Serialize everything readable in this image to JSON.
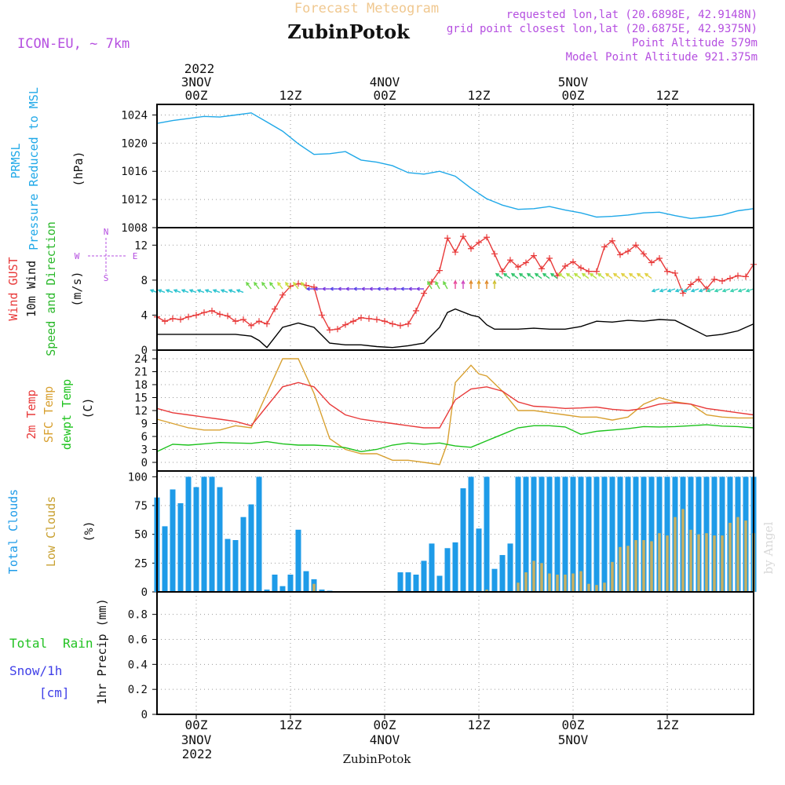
{
  "header": {
    "subtitle": "Forecast Meteogram",
    "location": "ZubinPotok",
    "model": "ICON-EU, ~ 7km",
    "requested": "requested lon,lat (20.6898E, 42.9148N)",
    "closest": "grid point closest lon,lat (20.6875E, 42.9375N)",
    "point_altitude": "Point Altitude 579m",
    "model_altitude": "Model Point Altitude 921.375m",
    "footer_location": "ZubinPotok",
    "watermark": "by Angel"
  },
  "time_axis": {
    "year": "2022",
    "ticks": [
      {
        "hour": 0,
        "label": "00Z",
        "date": "3NOV"
      },
      {
        "hour": 12,
        "label": "12Z",
        "date": ""
      },
      {
        "hour": 24,
        "label": "00Z",
        "date": "4NOV"
      },
      {
        "hour": 36,
        "label": "12Z",
        "date": ""
      },
      {
        "hour": 48,
        "label": "00Z",
        "date": "5NOV"
      },
      {
        "hour": 60,
        "label": "12Z",
        "date": ""
      }
    ],
    "start_hour": -5,
    "end_hour": 71
  },
  "colors": {
    "pressure": "#1fa8e8",
    "gust": "#e83a3a",
    "wind": "#000000",
    "dir_label": "#2ab82a",
    "temp2m": "#e83a3a",
    "sfc": "#d8a030",
    "dewpt": "#1cc21c",
    "total_clouds": "#1e9be8",
    "low_clouds": "#c8b060",
    "rain": "#22c222",
    "snow": "#3f3fe8",
    "purple": "#b54fe0"
  },
  "chart_data": [
    {
      "type": "line",
      "panel": "pressure",
      "labels": [
        "PRMSL",
        "Pressure Reduced to MSL"
      ],
      "ylabel": "(hPa)",
      "ylim": [
        1008,
        1025.5
      ],
      "yticks": [
        1008,
        1012,
        1016,
        1020,
        1024
      ],
      "series": [
        {
          "name": "PRMSL",
          "x": [
            -5,
            -3,
            -1,
            1,
            3,
            5,
            7,
            9,
            11,
            13,
            15,
            17,
            19,
            21,
            23,
            25,
            27,
            29,
            31,
            33,
            35,
            37,
            39,
            41,
            43,
            45,
            47,
            49,
            51,
            53,
            55,
            57,
            59,
            61,
            63,
            65,
            67,
            69,
            71
          ],
          "values": [
            1022.8,
            1023.2,
            1023.5,
            1023.8,
            1023.7,
            1024.0,
            1024.3,
            1023.0,
            1021.7,
            1019.9,
            1018.4,
            1018.5,
            1018.8,
            1017.6,
            1017.3,
            1016.8,
            1015.8,
            1015.6,
            1016.0,
            1015.3,
            1013.6,
            1012.1,
            1011.2,
            1010.6,
            1010.7,
            1011.0,
            1010.5,
            1010.1,
            1009.5,
            1009.6,
            1009.8,
            1010.1,
            1010.2,
            1009.7,
            1009.3,
            1009.5,
            1009.8,
            1010.4,
            1010.7
          ]
        }
      ]
    },
    {
      "type": "line",
      "panel": "wind",
      "labels": [
        "Wind GUST",
        "10m Wind",
        "Speed and Direction"
      ],
      "ylabel": "(m/s)",
      "compass": [
        "N",
        "W",
        "E",
        "S"
      ],
      "ylim": [
        0,
        14
      ],
      "yticks": [
        0,
        4,
        8,
        12
      ],
      "series": [
        {
          "name": "Wind GUST",
          "x": [
            -5,
            -4,
            -3,
            -2,
            -1,
            0,
            1,
            2,
            3,
            4,
            5,
            6,
            7,
            8,
            9,
            10,
            11,
            12,
            13,
            14,
            15,
            16,
            17,
            18,
            19,
            20,
            21,
            22,
            23,
            24,
            25,
            26,
            27,
            28,
            29,
            30,
            31,
            32,
            33,
            34,
            35,
            36,
            37,
            38,
            39,
            40,
            41,
            42,
            43,
            44,
            45,
            46,
            47,
            48,
            49,
            50,
            51,
            52,
            53,
            54,
            55,
            56,
            57,
            58,
            59,
            60,
            61,
            62,
            63,
            64,
            65,
            66,
            67,
            68,
            69,
            70,
            71
          ],
          "values": [
            3.8,
            3.3,
            3.6,
            3.5,
            3.8,
            4.0,
            4.3,
            4.5,
            4.1,
            3.9,
            3.3,
            3.5,
            2.8,
            3.3,
            3.0,
            4.7,
            6.3,
            7.3,
            7.6,
            7.4,
            7.2,
            4.0,
            2.3,
            2.4,
            2.9,
            3.3,
            3.7,
            3.6,
            3.5,
            3.3,
            3.0,
            2.8,
            3.0,
            4.5,
            6.5,
            7.8,
            9.1,
            12.8,
            11.2,
            13.0,
            11.6,
            12.3,
            12.9,
            11.0,
            9.0,
            10.3,
            9.5,
            10.0,
            10.8,
            9.3,
            10.5,
            8.5,
            9.6,
            10.1,
            9.4,
            9.0,
            9.0,
            11.8,
            12.5,
            10.9,
            11.3,
            12.0,
            11.0,
            10.0,
            10.5,
            9.0,
            8.8,
            6.5,
            7.5,
            8.1,
            7.0,
            8.1,
            7.9,
            8.2,
            8.5,
            8.4,
            9.8
          ]
        },
        {
          "name": "10m Wind",
          "x": [
            -5,
            -3,
            -1,
            1,
            3,
            5,
            7,
            8,
            9,
            11,
            13,
            15,
            17,
            19,
            21,
            23,
            25,
            27,
            29,
            31,
            32,
            33,
            35,
            36,
            37,
            38,
            39,
            41,
            43,
            45,
            47,
            49,
            51,
            53,
            55,
            57,
            59,
            61,
            63,
            65,
            67,
            69,
            71
          ],
          "values": [
            1.8,
            1.8,
            1.8,
            1.8,
            1.8,
            1.8,
            1.6,
            1.1,
            0.3,
            2.6,
            3.1,
            2.6,
            0.8,
            0.6,
            0.6,
            0.4,
            0.3,
            0.5,
            0.8,
            2.6,
            4.3,
            4.7,
            4.0,
            3.8,
            2.9,
            2.4,
            2.4,
            2.4,
            2.5,
            2.4,
            2.4,
            2.7,
            3.3,
            3.2,
            3.4,
            3.3,
            3.5,
            3.4,
            2.5,
            1.6,
            1.8,
            2.2,
            3.0
          ]
        }
      ]
    },
    {
      "type": "line",
      "panel": "temperature",
      "labels": [
        "2m Temp",
        "SFC Temp",
        "dewpt Temp"
      ],
      "ylabel": "(C)",
      "ylim": [
        -2,
        26
      ],
      "yticks": [
        0,
        3,
        6,
        9,
        12,
        15,
        18,
        21,
        24
      ],
      "series": [
        {
          "name": "2m Temp",
          "x": [
            -5,
            -3,
            -1,
            1,
            3,
            5,
            7,
            9,
            11,
            13,
            15,
            17,
            19,
            21,
            23,
            25,
            27,
            29,
            31,
            33,
            35,
            37,
            39,
            41,
            43,
            45,
            47,
            49,
            51,
            53,
            55,
            57,
            59,
            61,
            63,
            65,
            67,
            69,
            71
          ],
          "values": [
            12.5,
            11.5,
            11.0,
            10.5,
            10.0,
            9.5,
            8.5,
            13.0,
            17.5,
            18.5,
            17.5,
            13.5,
            11.0,
            10.0,
            9.5,
            9.0,
            8.5,
            8.0,
            8.0,
            14.5,
            17.0,
            17.5,
            16.5,
            14.0,
            13.0,
            12.8,
            12.5,
            12.6,
            12.8,
            12.3,
            12.0,
            12.5,
            13.5,
            13.8,
            13.5,
            12.5,
            12.0,
            11.5,
            11.0
          ]
        },
        {
          "name": "SFC Temp",
          "x": [
            -5,
            -3,
            -1,
            1,
            3,
            5,
            7,
            9,
            11,
            13,
            15,
            17,
            19,
            21,
            23,
            25,
            27,
            29,
            31,
            32,
            33,
            35,
            36,
            37,
            39,
            41,
            43,
            45,
            47,
            49,
            51,
            53,
            55,
            57,
            59,
            61,
            63,
            65,
            67,
            69,
            71
          ],
          "values": [
            10.0,
            9.0,
            8.0,
            7.5,
            7.5,
            8.5,
            8.0,
            16.0,
            24.0,
            24.0,
            16.0,
            5.5,
            3.0,
            2.0,
            2.0,
            0.5,
            0.5,
            0.0,
            -0.5,
            4.5,
            18.5,
            22.5,
            20.5,
            20.0,
            16.5,
            12.0,
            12.0,
            11.5,
            11.0,
            10.5,
            10.5,
            9.8,
            10.5,
            13.5,
            15.0,
            14.0,
            13.5,
            11.0,
            10.5,
            10.3,
            10.3
          ]
        },
        {
          "name": "dewpt Temp",
          "x": [
            -5,
            -3,
            -1,
            1,
            3,
            5,
            7,
            9,
            11,
            13,
            15,
            17,
            19,
            21,
            23,
            25,
            27,
            29,
            31,
            33,
            35,
            37,
            39,
            41,
            43,
            45,
            47,
            49,
            51,
            53,
            55,
            57,
            59,
            61,
            63,
            65,
            67,
            69,
            71
          ],
          "values": [
            2.5,
            4.2,
            4.0,
            4.3,
            4.6,
            4.5,
            4.4,
            4.8,
            4.3,
            4.0,
            4.0,
            3.8,
            3.4,
            2.5,
            3.0,
            4.0,
            4.5,
            4.2,
            4.5,
            3.8,
            3.5,
            5.0,
            6.5,
            8.0,
            8.5,
            8.5,
            8.2,
            6.5,
            7.2,
            7.5,
            7.8,
            8.3,
            8.2,
            8.3,
            8.5,
            8.7,
            8.4,
            8.3,
            8.0
          ]
        }
      ]
    },
    {
      "type": "bar",
      "panel": "clouds",
      "labels": [
        "Total Clouds",
        "Low Clouds"
      ],
      "ylabel": "(%)",
      "ylim": [
        0,
        105
      ],
      "yticks": [
        0,
        25,
        50,
        75,
        100
      ],
      "x": [
        -5,
        -4,
        -3,
        -2,
        -1,
        0,
        1,
        2,
        3,
        4,
        5,
        6,
        7,
        8,
        9,
        10,
        11,
        12,
        13,
        14,
        15,
        16,
        17,
        18,
        19,
        20,
        21,
        22,
        23,
        24,
        25,
        26,
        27,
        28,
        29,
        30,
        31,
        32,
        33,
        34,
        35,
        36,
        37,
        38,
        39,
        40,
        41,
        42,
        43,
        44,
        45,
        46,
        47,
        48,
        49,
        50,
        51,
        52,
        53,
        54,
        55,
        56,
        57,
        58,
        59,
        60,
        61,
        62,
        63,
        64,
        65,
        66,
        67,
        68,
        69,
        70,
        71
      ],
      "series": [
        {
          "name": "Total Clouds",
          "values": [
            82,
            57,
            89,
            77,
            100,
            91,
            100,
            100,
            91,
            46,
            45,
            65,
            76,
            100,
            2,
            15,
            5,
            15,
            54,
            18,
            11,
            2,
            1,
            0,
            0,
            0,
            0,
            0,
            0,
            0,
            0,
            17,
            17,
            15,
            27,
            42,
            14,
            38,
            43,
            90,
            100,
            55,
            100,
            20,
            32,
            42,
            100,
            100,
            100,
            100,
            100,
            100,
            100,
            100,
            100,
            100,
            100,
            100,
            100,
            100,
            100,
            100,
            100,
            100,
            100,
            100,
            100,
            100,
            100,
            100,
            100,
            100,
            100,
            100,
            100,
            100,
            100
          ]
        },
        {
          "name": "Low Clouds",
          "values": [
            0,
            0,
            0,
            0,
            0,
            0,
            0,
            0,
            0,
            0,
            0,
            0,
            0,
            0,
            0,
            0,
            0,
            0,
            0,
            0,
            7,
            0,
            0,
            0,
            0,
            0,
            0,
            0,
            0,
            0,
            0,
            0,
            0,
            0,
            0,
            0,
            0,
            0,
            0,
            0,
            0,
            0,
            2,
            0,
            0,
            0,
            8,
            17,
            27,
            25,
            16,
            15,
            15,
            16,
            18,
            7,
            6,
            8,
            26,
            39,
            40,
            45,
            45,
            44,
            51,
            49,
            65,
            72,
            54,
            50,
            51,
            49,
            49,
            60,
            65,
            62,
            51
          ]
        }
      ]
    },
    {
      "type": "bar",
      "panel": "precip",
      "labels": [
        "Total",
        "Rain",
        "Snow/1h",
        "[cm]"
      ],
      "ylabel": "1hr Precip (mm)",
      "ylim": [
        0,
        0.98
      ],
      "yticks": [
        0,
        0.2,
        0.4,
        0.6,
        0.8
      ],
      "ytick_labels": [
        "0",
        "0.2",
        "0.4",
        "0.6",
        "0.8"
      ],
      "x": [
        -5,
        -4,
        -3,
        -2,
        -1,
        0,
        1,
        2,
        3,
        4,
        5,
        6,
        7,
        8,
        9,
        10,
        11,
        12,
        13,
        14,
        15,
        16,
        17,
        18,
        19,
        20,
        21,
        22,
        23,
        24,
        25,
        26,
        27,
        28,
        29,
        30,
        31,
        32,
        33,
        34,
        35,
        36,
        37,
        38,
        39,
        40,
        41,
        42,
        43,
        44,
        45,
        46,
        47,
        48,
        49,
        50,
        51,
        52,
        53,
        54,
        55,
        56,
        57,
        58,
        59,
        60,
        61,
        62,
        63,
        64,
        65,
        66,
        67,
        68,
        69,
        70,
        71
      ],
      "series": [
        {
          "name": "Rain",
          "values": [
            0,
            0,
            0,
            0,
            0,
            0,
            0,
            0,
            0,
            0,
            0,
            0,
            0,
            0,
            0,
            0,
            0,
            0,
            0,
            0,
            0,
            0,
            0,
            0,
            0,
            0,
            0,
            0,
            0,
            0,
            0,
            0,
            0,
            0,
            0,
            0,
            0,
            0,
            0,
            0,
            0,
            0,
            0,
            0,
            0,
            0,
            0,
            0,
            0,
            0,
            0,
            0,
            0,
            0,
            0,
            0,
            0,
            0,
            0,
            0,
            0,
            0,
            0,
            0,
            0,
            0,
            0,
            0,
            0,
            0,
            0,
            0,
            0,
            0,
            0,
            0,
            0
          ]
        }
      ]
    }
  ]
}
